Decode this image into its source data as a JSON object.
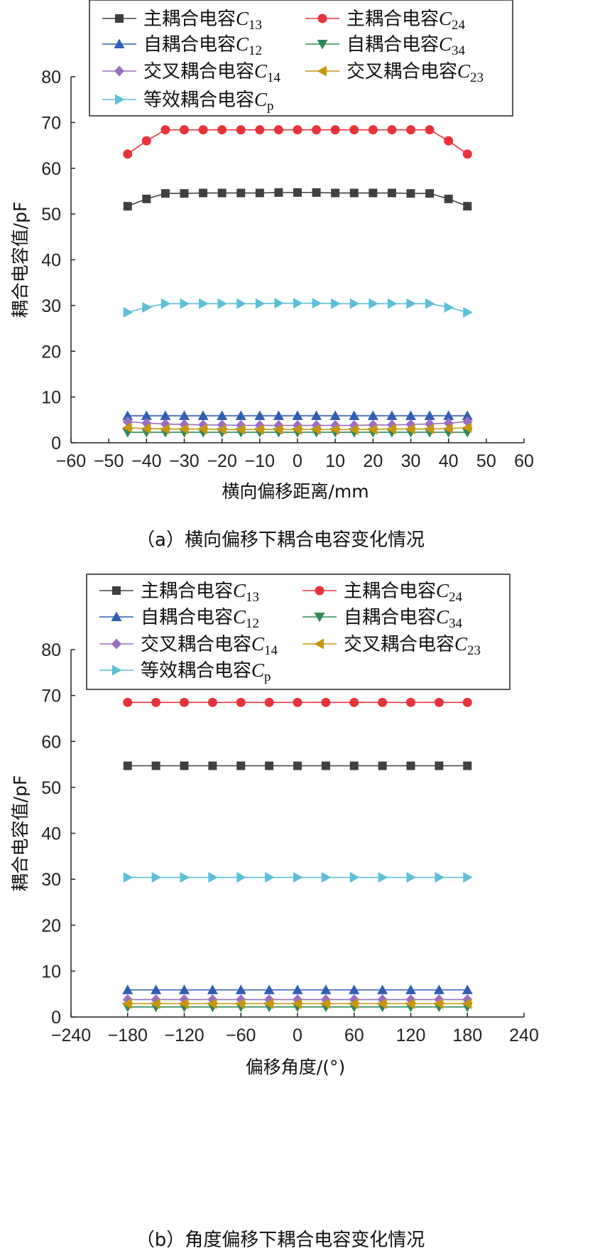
{
  "chart_data": [
    {
      "type": "line",
      "caption": "（a）横向偏移下耦合电容变化情况",
      "xlabel": "横向偏移距离/mm",
      "ylabel": "耦合电容值/pF",
      "xlim": [
        -60,
        60
      ],
      "ylim": [
        0,
        80
      ],
      "xticks": [
        -60,
        -50,
        -40,
        -30,
        -20,
        -10,
        0,
        10,
        20,
        30,
        40,
        50,
        60
      ],
      "yticks": [
        0,
        10,
        20,
        30,
        40,
        50,
        60,
        70,
        80
      ],
      "xtick_labels": [
        "−60",
        "−50",
        "−40",
        "−30",
        "−20",
        "−10",
        "0",
        "10",
        "20",
        "30",
        "40",
        "50",
        "60"
      ],
      "ytick_labels": [
        "0",
        "10",
        "20",
        "30",
        "40",
        "50",
        "60",
        "70",
        "80"
      ],
      "legend_position": "top",
      "x": [
        -45,
        -40,
        -35,
        -30,
        -25,
        -20,
        -15,
        -10,
        -5,
        0,
        5,
        10,
        15,
        20,
        25,
        30,
        35,
        40,
        45
      ],
      "series": [
        {
          "name": "主耦合电容C13",
          "label": "主耦合电容",
          "sym": "C",
          "sub": "13",
          "color": "#404040",
          "marker": "square",
          "values": [
            51.7,
            53.3,
            54.5,
            54.5,
            54.6,
            54.6,
            54.6,
            54.6,
            54.7,
            54.7,
            54.7,
            54.6,
            54.6,
            54.6,
            54.6,
            54.5,
            54.5,
            53.3,
            51.7
          ]
        },
        {
          "name": "主耦合电容C24",
          "label": "主耦合电容",
          "sym": "C",
          "sub": "24",
          "color": "#e8333b",
          "marker": "circle",
          "values": [
            63.1,
            66.0,
            68.4,
            68.4,
            68.4,
            68.4,
            68.4,
            68.4,
            68.4,
            68.4,
            68.4,
            68.4,
            68.4,
            68.4,
            68.4,
            68.4,
            68.4,
            66.0,
            63.1
          ]
        },
        {
          "name": "自耦合电容C12",
          "label": "自耦合电容",
          "sym": "C",
          "sub": "12",
          "color": "#2f5fb3",
          "marker": "triangle-up",
          "values": [
            5.9,
            5.9,
            5.9,
            5.9,
            5.9,
            5.9,
            5.9,
            5.9,
            5.9,
            5.9,
            5.9,
            5.9,
            5.9,
            5.9,
            5.9,
            5.9,
            5.9,
            5.9,
            5.9
          ]
        },
        {
          "name": "自耦合电容C34",
          "label": "自耦合电容",
          "sym": "C",
          "sub": "34",
          "color": "#2e8b57",
          "marker": "triangle-down",
          "values": [
            2.3,
            2.3,
            2.3,
            2.3,
            2.3,
            2.3,
            2.3,
            2.3,
            2.3,
            2.3,
            2.3,
            2.3,
            2.3,
            2.3,
            2.3,
            2.3,
            2.3,
            2.3,
            2.3
          ]
        },
        {
          "name": "交叉耦合电容C14",
          "label": "交叉耦合电容",
          "sym": "C",
          "sub": "14",
          "color": "#9b6fc2",
          "marker": "diamond",
          "values": [
            4.6,
            4.3,
            4.1,
            4.0,
            3.9,
            3.9,
            3.8,
            3.8,
            3.8,
            3.8,
            3.8,
            3.8,
            3.8,
            3.9,
            3.9,
            4.0,
            4.1,
            4.3,
            4.6
          ]
        },
        {
          "name": "交叉耦合电容C23",
          "label": "交叉耦合电容",
          "sym": "C",
          "sub": "23",
          "color": "#c8960c",
          "marker": "triangle-left",
          "values": [
            3.3,
            3.1,
            3.0,
            3.0,
            3.0,
            2.9,
            2.9,
            2.9,
            2.9,
            2.9,
            2.9,
            2.9,
            2.9,
            2.9,
            3.0,
            3.0,
            3.0,
            3.1,
            3.3
          ]
        },
        {
          "name": "等效耦合电容Cp",
          "label": "等效耦合电容",
          "sym": "C",
          "sub": "p",
          "color": "#5bc0d8",
          "marker": "triangle-right",
          "values": [
            28.5,
            29.6,
            30.4,
            30.4,
            30.4,
            30.4,
            30.4,
            30.4,
            30.5,
            30.5,
            30.5,
            30.4,
            30.4,
            30.4,
            30.4,
            30.4,
            30.4,
            29.6,
            28.5
          ]
        }
      ]
    },
    {
      "type": "line",
      "caption": "（b）角度偏移下耦合电容变化情况",
      "xlabel": "偏移角度/(°)",
      "ylabel": "耦合电容值/pF",
      "xlim": [
        -240,
        240
      ],
      "ylim": [
        0,
        80
      ],
      "xticks": [
        -240,
        -180,
        -120,
        -60,
        0,
        60,
        120,
        180,
        240
      ],
      "yticks": [
        0,
        10,
        20,
        30,
        40,
        50,
        60,
        70,
        80
      ],
      "xtick_labels": [
        "−240",
        "−180",
        "−120",
        "−60",
        "0",
        "60",
        "120",
        "180",
        "240"
      ],
      "ytick_labels": [
        "0",
        "10",
        "20",
        "30",
        "40",
        "50",
        "60",
        "70",
        "80"
      ],
      "legend_position": "top",
      "x": [
        -180,
        -150,
        -120,
        -90,
        -60,
        -30,
        0,
        30,
        60,
        90,
        120,
        150,
        180
      ],
      "series": [
        {
          "name": "主耦合电容C13",
          "label": "主耦合电容",
          "sym": "C",
          "sub": "13",
          "color": "#404040",
          "marker": "square",
          "values": [
            54.7,
            54.7,
            54.7,
            54.7,
            54.7,
            54.7,
            54.7,
            54.7,
            54.7,
            54.7,
            54.7,
            54.7,
            54.7
          ]
        },
        {
          "name": "主耦合电容C24",
          "label": "主耦合电容",
          "sym": "C",
          "sub": "24",
          "color": "#e8333b",
          "marker": "circle",
          "values": [
            68.5,
            68.5,
            68.5,
            68.5,
            68.5,
            68.5,
            68.5,
            68.5,
            68.5,
            68.5,
            68.5,
            68.5,
            68.5
          ]
        },
        {
          "name": "自耦合电容C12",
          "label": "自耦合电容",
          "sym": "C",
          "sub": "12",
          "color": "#2f5fb3",
          "marker": "triangle-up",
          "values": [
            5.9,
            5.9,
            5.9,
            5.9,
            5.9,
            5.9,
            5.9,
            5.9,
            5.9,
            5.9,
            5.9,
            5.9,
            5.9
          ]
        },
        {
          "name": "自耦合电容C34",
          "label": "自耦合电容",
          "sym": "C",
          "sub": "34",
          "color": "#2e8b57",
          "marker": "triangle-down",
          "values": [
            2.2,
            2.2,
            2.2,
            2.2,
            2.2,
            2.2,
            2.2,
            2.2,
            2.2,
            2.2,
            2.2,
            2.2,
            2.2
          ]
        },
        {
          "name": "交叉耦合电容C14",
          "label": "交叉耦合电容",
          "sym": "C",
          "sub": "14",
          "color": "#9b6fc2",
          "marker": "diamond",
          "values": [
            3.8,
            3.8,
            3.8,
            3.8,
            3.8,
            3.8,
            3.8,
            3.8,
            3.8,
            3.8,
            3.8,
            3.8,
            3.8
          ]
        },
        {
          "name": "交叉耦合电容C23",
          "label": "交叉耦合电容",
          "sym": "C",
          "sub": "23",
          "color": "#c8960c",
          "marker": "triangle-left",
          "values": [
            2.9,
            2.9,
            2.9,
            2.9,
            2.9,
            2.9,
            2.9,
            2.9,
            2.9,
            2.9,
            2.9,
            2.9,
            2.9
          ]
        },
        {
          "name": "等效耦合电容Cp",
          "label": "等效耦合电容",
          "sym": "C",
          "sub": "p",
          "color": "#5bc0d8",
          "marker": "triangle-right",
          "values": [
            30.4,
            30.4,
            30.4,
            30.4,
            30.4,
            30.4,
            30.4,
            30.4,
            30.4,
            30.4,
            30.4,
            30.4,
            30.4
          ]
        }
      ]
    }
  ]
}
